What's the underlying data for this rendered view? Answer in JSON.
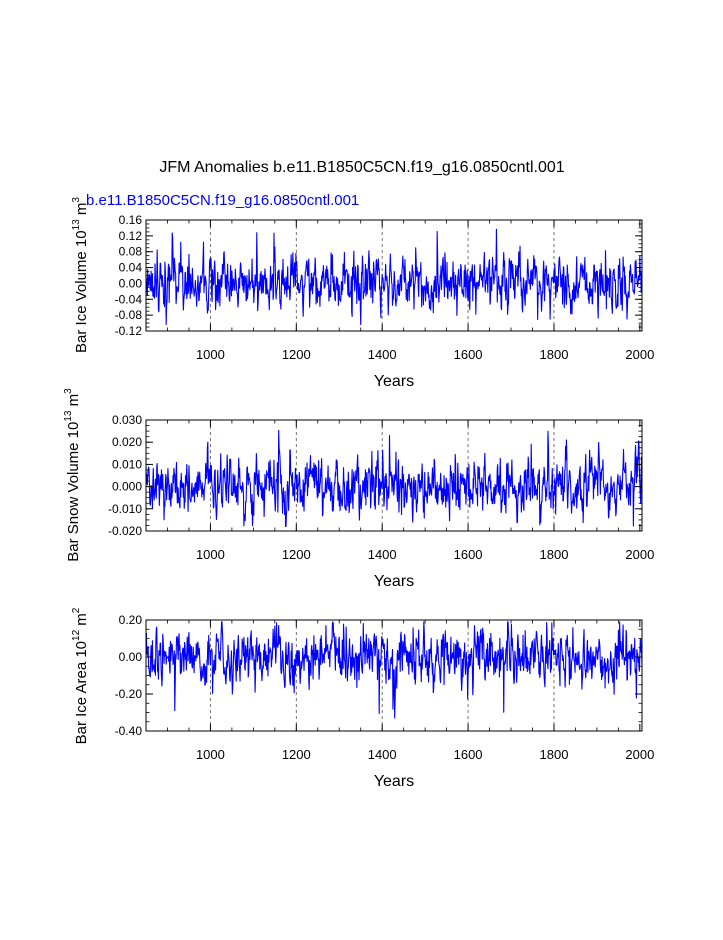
{
  "main_title": "JFM Anomalies b.e11.B1850C5CN.f19_g16.0850cntl.001",
  "colors": {
    "series": "#0000ff",
    "axis": "#000000",
    "grid": "#555555"
  },
  "chart_data": [
    {
      "type": "line",
      "subtitle": "b.e11.B1850C5CN.f19_g16.0850cntl.001",
      "ylabel": "Bar Ice Volume 10",
      "ylabel_exp1": "13",
      "ylabel_unit": " m",
      "ylabel_exp2": "3",
      "xlabel": "Years",
      "xlim": [
        850,
        2005
      ],
      "ylim": [
        -0.12,
        0.16
      ],
      "yticks": [
        -0.12,
        -0.08,
        -0.04,
        0.0,
        0.04,
        0.08,
        0.12,
        0.16
      ],
      "ytick_labels": [
        "-0.12",
        "-0.08",
        "-0.04",
        "0.00",
        "0.04",
        "0.08",
        "0.12",
        "0.16"
      ],
      "xticks": [
        1000,
        1200,
        1400,
        1600,
        1800,
        2000
      ],
      "xtick_labels": [
        "1000",
        "1200",
        "1400",
        "1600",
        "1800",
        "2000"
      ],
      "vlines": [
        1000,
        1200,
        1400,
        1600,
        1800
      ],
      "series_params": {
        "seed": 17,
        "sd": 0.034,
        "min": -0.105,
        "max": 0.14
      },
      "x": [],
      "y": []
    },
    {
      "type": "line",
      "subtitle": "",
      "ylabel": "Bar Snow Volume 10",
      "ylabel_exp1": "13",
      "ylabel_unit": " m",
      "ylabel_exp2": "3",
      "xlabel": "Years",
      "xlim": [
        850,
        2005
      ],
      "ylim": [
        -0.02,
        0.03
      ],
      "yticks": [
        -0.02,
        -0.01,
        0.0,
        0.01,
        0.02,
        0.03
      ],
      "ytick_labels": [
        "-0.020",
        "-0.010",
        "0.000",
        "0.010",
        "0.020",
        "0.030"
      ],
      "xticks": [
        1000,
        1200,
        1400,
        1600,
        1800,
        2000
      ],
      "xtick_labels": [
        "1000",
        "1200",
        "1400",
        "1600",
        "1800",
        "2000"
      ],
      "vlines": [
        1000,
        1200,
        1400,
        1600,
        1800
      ],
      "series_params": {
        "seed": 41,
        "sd": 0.0062,
        "min": -0.018,
        "max": 0.027
      },
      "x": [],
      "y": []
    },
    {
      "type": "line",
      "subtitle": "",
      "ylabel": "Bar Ice Area 10",
      "ylabel_exp1": "12",
      "ylabel_unit": " m",
      "ylabel_exp2": "2",
      "xlabel": "Years",
      "xlim": [
        850,
        2005
      ],
      "ylim": [
        -0.4,
        0.2
      ],
      "yticks": [
        -0.4,
        -0.2,
        0.0,
        0.2
      ],
      "ytick_labels": [
        "-0.40",
        "-0.20",
        "0.00",
        "0.20"
      ],
      "xticks": [
        1000,
        1200,
        1400,
        1600,
        1800,
        2000
      ],
      "xtick_labels": [
        "1000",
        "1200",
        "1400",
        "1600",
        "1800",
        "2000"
      ],
      "vlines": [
        1000,
        1200,
        1400,
        1600,
        1800
      ],
      "series_params": {
        "seed": 73,
        "sd": 0.072,
        "min": -0.33,
        "max": 0.19
      },
      "x": [],
      "y": []
    }
  ]
}
